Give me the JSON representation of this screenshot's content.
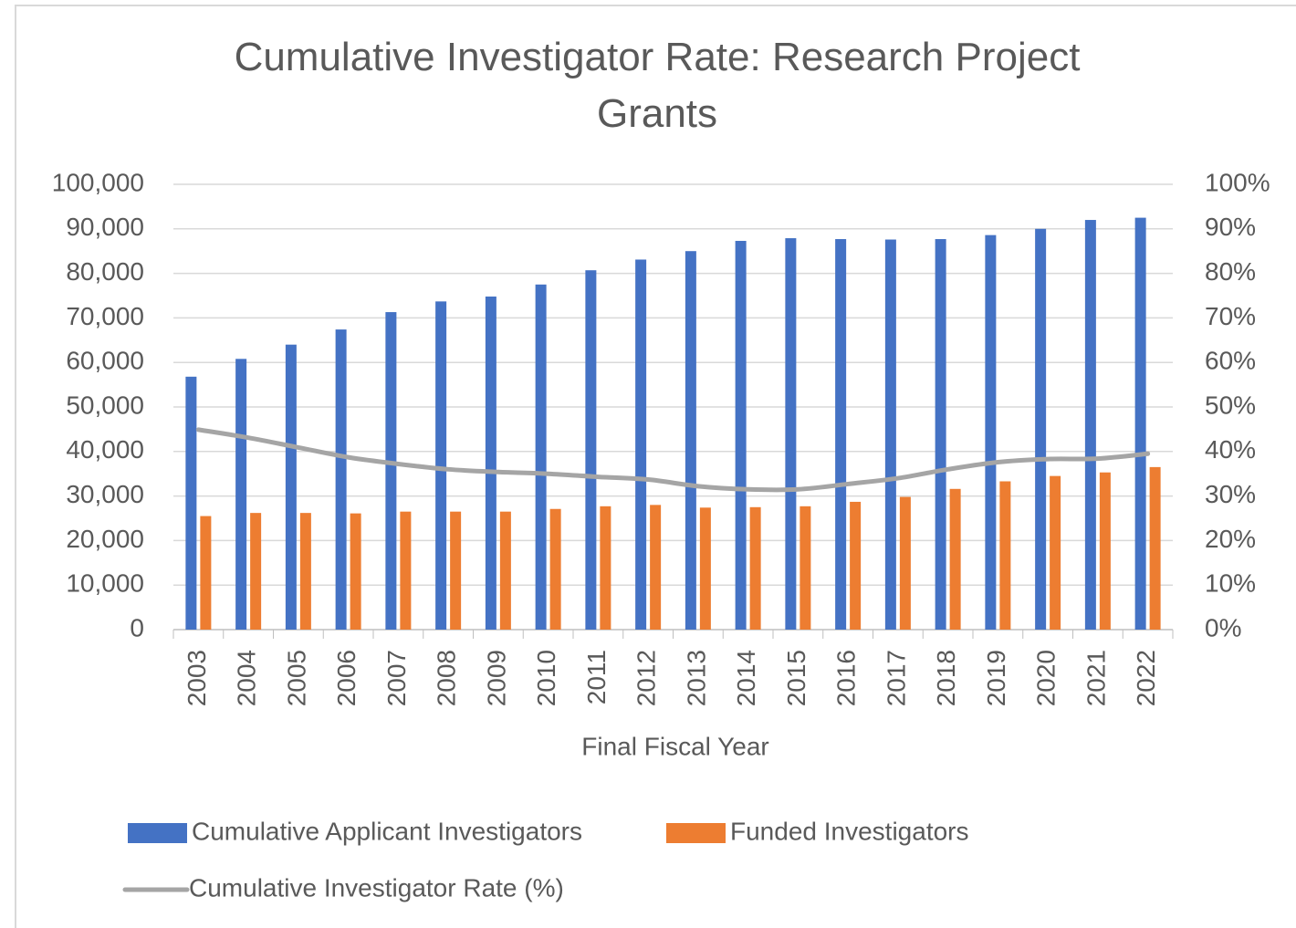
{
  "chart_data": {
    "type": "bar_line",
    "title": "Cumulative Investigator Rate: Research Project Grants",
    "x_label": "Final Fiscal Year",
    "categories": [
      "2003",
      "2004",
      "2005",
      "2006",
      "2007",
      "2008",
      "2009",
      "2010",
      "2011",
      "2012",
      "2013",
      "2014",
      "2015",
      "2016",
      "2017",
      "2018",
      "2019",
      "2020",
      "2021",
      "2022"
    ],
    "series": [
      {
        "name": "Cumulative Applicant Investigators",
        "color": "#4472c4",
        "type": "bar",
        "values": [
          56800,
          60800,
          64000,
          67400,
          71300,
          73700,
          74800,
          77500,
          80700,
          83100,
          85000,
          87300,
          87900,
          87700,
          87600,
          87700,
          88600,
          90000,
          92000,
          92500
        ]
      },
      {
        "name": "Funded Investigators",
        "color": "#ed7d31",
        "type": "bar",
        "values": [
          25500,
          26200,
          26200,
          26100,
          26500,
          26500,
          26500,
          27100,
          27700,
          28000,
          27400,
          27500,
          27700,
          28700,
          29800,
          31600,
          33300,
          34500,
          35300,
          36500
        ]
      },
      {
        "name": "Cumulative Investigator Rate (%)",
        "color": "#a5a5a5",
        "type": "line",
        "axis": "y2",
        "values": [
          44.9,
          43.1,
          40.9,
          38.7,
          37.2,
          36.0,
          35.4,
          35.0,
          34.3,
          33.7,
          32.2,
          31.5,
          31.5,
          32.7,
          34.0,
          36.0,
          37.6,
          38.3,
          38.4,
          39.5
        ]
      }
    ],
    "ylim": [
      0,
      100000
    ],
    "yticks": [
      0,
      {
        "value": 10000,
        "label": "10,000"
      },
      {
        "value": 20000,
        "label": "20,000"
      },
      {
        "value": 30000,
        "label": "30,000"
      },
      {
        "value": 40000,
        "label": "40,000"
      },
      {
        "value": 50000,
        "label": "50,000"
      },
      {
        "value": 60000,
        "label": "60,000"
      },
      {
        "value": 70000,
        "label": "70,000"
      },
      {
        "value": 80000,
        "label": "80,000"
      },
      {
        "value": 90000,
        "label": "90,000"
      },
      {
        "value": 100000,
        "label": "100,000"
      }
    ],
    "y2lim": [
      0,
      100
    ],
    "y2ticks": [
      {
        "value": 0,
        "label": "0%"
      },
      {
        "value": 10,
        "label": "10%"
      },
      {
        "value": 20,
        "label": "20%"
      },
      {
        "value": 30,
        "label": "30%"
      },
      {
        "value": 40,
        "label": "40%"
      },
      {
        "value": 50,
        "label": "50%"
      },
      {
        "value": 60,
        "label": "60%"
      },
      {
        "value": 70,
        "label": "70%"
      },
      {
        "value": 80,
        "label": "80%"
      },
      {
        "value": 90,
        "label": "90%"
      },
      {
        "value": 100,
        "label": "100%"
      }
    ],
    "grid": true
  }
}
